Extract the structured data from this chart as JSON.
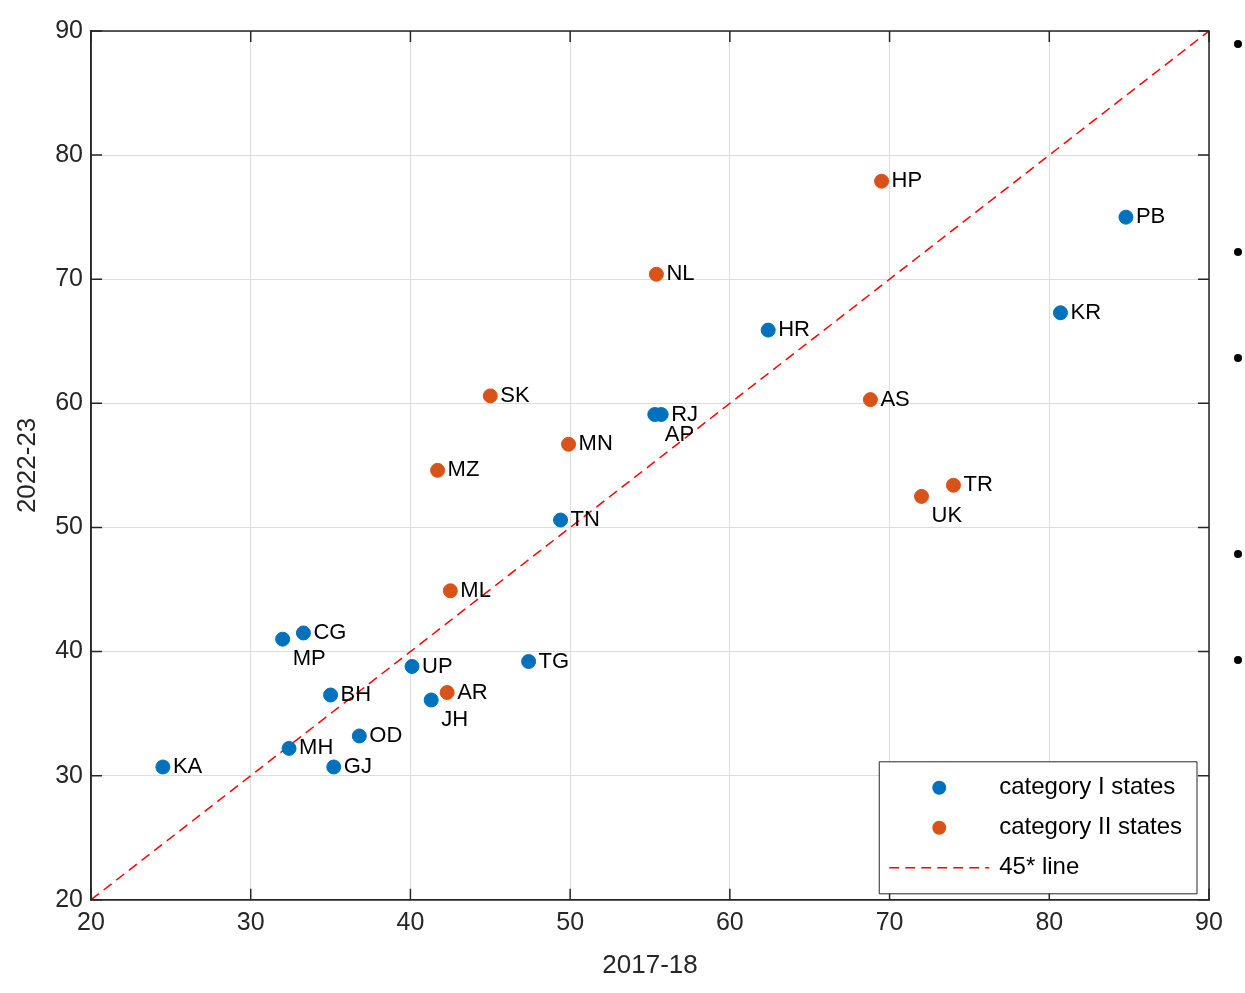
{
  "chart_data": {
    "type": "scatter",
    "xlabel": "2017-18",
    "ylabel": "2022-23",
    "xlim": [
      20,
      90
    ],
    "ylim": [
      20,
      90
    ],
    "xticks": [
      20,
      30,
      40,
      50,
      60,
      70,
      80,
      90
    ],
    "yticks": [
      20,
      30,
      40,
      50,
      60,
      70,
      80,
      90
    ],
    "grid": true,
    "legend": "bottom right",
    "marker": "circle",
    "series": [
      {
        "name": "category I states",
        "color": "#0072bd",
        "x": [
          84.8,
          80.7,
          62.4,
          55.3,
          55.7,
          49.4,
          47.4,
          40.1,
          33.3,
          32.0,
          35.0,
          41.3,
          36.8,
          32.4,
          35.2,
          24.5
        ],
        "values": [
          75.0,
          67.3,
          65.9,
          59.1,
          59.1,
          50.6,
          39.2,
          38.8,
          41.5,
          41.0,
          36.5,
          36.1,
          33.2,
          32.2,
          30.7,
          30.7
        ],
        "value_labels": [
          "PB",
          "KR",
          "HR",
          "AP",
          "RJ",
          "TN",
          "TG",
          "UP",
          "CG",
          "MP",
          "BH",
          "JH",
          "OD",
          "MH",
          "GJ",
          "KA"
        ]
      },
      {
        "name": "category II states",
        "color": "#d95319",
        "x": [
          69.5,
          55.4,
          45.0,
          68.8,
          49.9,
          41.7,
          72.0,
          74.0,
          42.5,
          42.3
        ],
        "values": [
          77.9,
          70.4,
          60.6,
          60.3,
          56.7,
          54.6,
          52.5,
          53.4,
          44.9,
          36.7
        ],
        "value_labels": [
          "HP",
          "NL",
          "SK",
          "AS",
          "MN",
          "MZ",
          "UK",
          "TR",
          "ML",
          "AR"
        ]
      },
      {
        "name": "45* line",
        "type": "line",
        "color": "#ff0000",
        "line_style": "dashed",
        "marker": "none",
        "x": [
          20,
          90
        ],
        "values": [
          20,
          90
        ]
      }
    ]
  }
}
